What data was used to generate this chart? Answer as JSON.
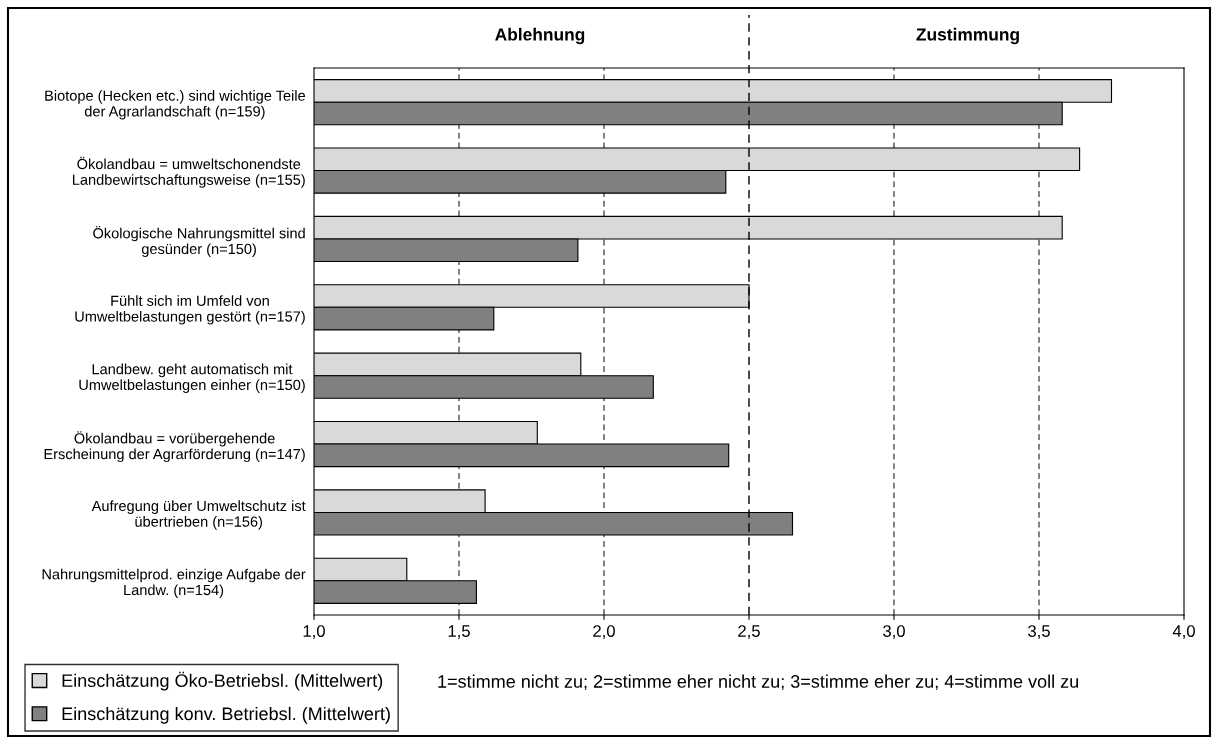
{
  "chart_data": {
    "type": "bar",
    "orientation": "horizontal",
    "categories": [
      "Biotope (Hecken etc.) sind wichtige Teile\nder Agrarlandschaft (n=159)",
      "Ökolandbau = umweltschonendste\nLandbewirtschaftungsweise (n=155)",
      "Ökologische Nahrungsmittel sind\ngesünder (n=150)",
      "Fühlt sich im Umfeld von\nUmweltbelastungen gestört (n=157)",
      "Landbew. geht automatisch mit\nUmweltbelastungen einher (n=150)",
      "Ökolandbau = vorübergehende\nErscheinung der Agrarförderung (n=147)",
      "Aufregung über Umweltschutz ist\nübertrieben (n=156)",
      "Nahrungsmittelprod. einzige Aufgabe der\nLandw. (n=154)"
    ],
    "series": [
      {
        "name": "Einschätzung Öko-Betriebsl. (Mittelwert)",
        "color": "#d9d9d9",
        "values": [
          3.75,
          3.64,
          3.58,
          2.5,
          1.92,
          1.77,
          1.59,
          1.32
        ]
      },
      {
        "name": "Einschätzung konv. Betriebsl. (Mittelwert)",
        "color": "#808080",
        "values": [
          3.58,
          2.42,
          1.91,
          1.62,
          2.17,
          2.43,
          2.65,
          1.56
        ]
      }
    ],
    "xlim": [
      1.0,
      4.0
    ],
    "xticks": [
      {
        "value": 1.0,
        "label": "1,0"
      },
      {
        "value": 1.5,
        "label": "1,5"
      },
      {
        "value": 2.0,
        "label": "2,0"
      },
      {
        "value": 2.5,
        "label": "2,5"
      },
      {
        "value": 3.0,
        "label": "3,0"
      },
      {
        "value": 3.5,
        "label": "3,5"
      },
      {
        "value": 4.0,
        "label": "4,0"
      }
    ],
    "grid": "x",
    "ref_lines": [
      {
        "axis": "x",
        "value": 2.5,
        "line_style": "dashed",
        "color": "#000000"
      }
    ],
    "legend": "bottom left",
    "annotations": [
      "Ablehnung",
      "Zustimmung",
      "1=stimme nicht zu; 2=stimme eher nicht zu; 3=stimme eher zu; 4=stimme voll zu"
    ]
  }
}
